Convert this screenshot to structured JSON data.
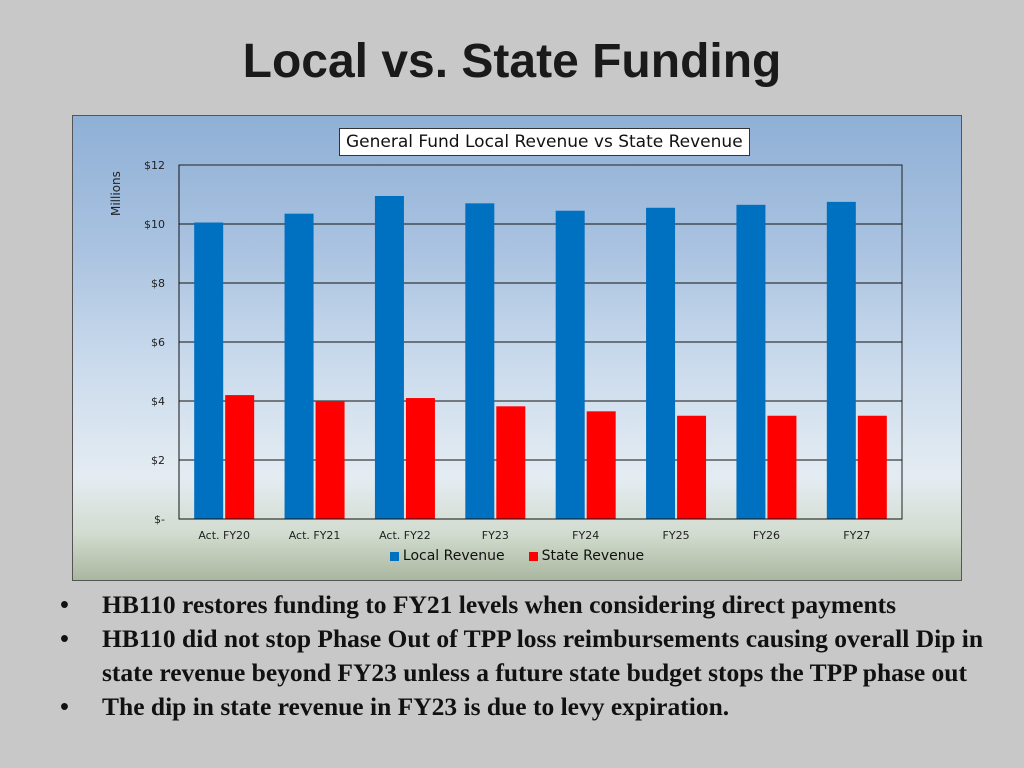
{
  "slide": {
    "title": "Local vs. State Funding"
  },
  "chart_data": {
    "type": "bar",
    "title": "General Fund Local Revenue vs State Revenue",
    "ylabel": "Millions",
    "xlabel": "",
    "ylim": [
      0,
      12
    ],
    "yticks": [
      0,
      2,
      4,
      6,
      8,
      10,
      12
    ],
    "ytick_labels": [
      "$-",
      "$2",
      "$4",
      "$6",
      "$8",
      "$10",
      "$12"
    ],
    "categories": [
      "Act. FY20",
      "Act. FY21",
      "Act.  FY22",
      "FY23",
      "FY24",
      "FY25",
      "FY26",
      "FY27"
    ],
    "series": [
      {
        "name": "Local Revenue",
        "color": "#0070c0",
        "values": [
          10.05,
          10.35,
          10.95,
          10.7,
          10.45,
          10.55,
          10.65,
          10.75
        ]
      },
      {
        "name": "State Revenue",
        "color": "#ff0000",
        "values": [
          4.2,
          4.0,
          4.1,
          3.82,
          3.65,
          3.5,
          3.5,
          3.5
        ]
      }
    ],
    "grid": true,
    "legend": "bottom"
  },
  "bullets": [
    {
      "marker": "•",
      "text": "HB110 restores funding to FY21 levels when considering direct payments"
    },
    {
      "marker": "•",
      "text": "HB110 did not stop Phase Out of TPP  loss reimbursements causing overall Dip in state revenue beyond FY23 unless a future state budget stops the TPP phase out"
    },
    {
      "marker": "•",
      "text": "The dip in state revenue in FY23 is due to levy expiration."
    }
  ]
}
